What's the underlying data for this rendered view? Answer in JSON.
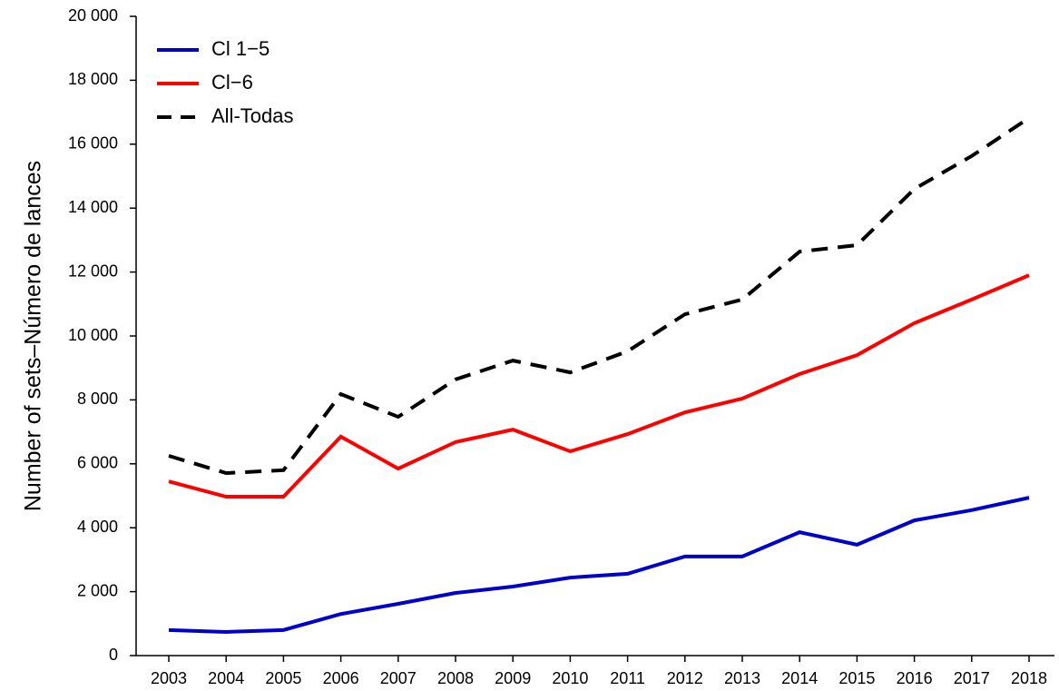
{
  "chart_data": {
    "type": "line",
    "y_label": "Number of sets–Número de lances",
    "categories": [
      "2003",
      "2004",
      "2005",
      "2006",
      "2007",
      "2008",
      "2009",
      "2010",
      "2011",
      "2012",
      "2013",
      "2014",
      "2015",
      "2016",
      "2017",
      "2018"
    ],
    "series": [
      {
        "name": "Cl 1−5",
        "color": "#0000cc",
        "linestyle": "solid",
        "values": [
          800,
          740,
          800,
          1300,
          1620,
          1960,
          2160,
          2440,
          2560,
          3100,
          3100,
          3860,
          3470,
          4230,
          4550,
          4940
        ]
      },
      {
        "name": "Cl−6",
        "color": "#ff0000",
        "linestyle": "solid",
        "values": [
          5450,
          4970,
          4970,
          6850,
          5850,
          6680,
          7070,
          6390,
          6930,
          7610,
          8040,
          8810,
          9400,
          10400,
          11140,
          11900
        ]
      },
      {
        "name": "All-Todas",
        "color": "#000000",
        "linestyle": "dashed",
        "values": [
          6250,
          5710,
          5800,
          8180,
          7470,
          8640,
          9230,
          8860,
          9520,
          10680,
          11140,
          12640,
          12840,
          14600,
          15630,
          16820
        ]
      }
    ],
    "ylim": [
      0,
      20000
    ],
    "yticks": [
      0,
      {
        "value": 2000,
        "label": "2 000"
      },
      {
        "value": 4000,
        "label": "4 000"
      },
      {
        "value": 6000,
        "label": "6 000"
      },
      {
        "value": 8000,
        "label": "8 000"
      },
      {
        "value": 10000,
        "label": "10 000"
      },
      {
        "value": 12000,
        "label": "12 000"
      },
      {
        "value": 14000,
        "label": "14 000"
      },
      {
        "value": 16000,
        "label": "16 000"
      },
      {
        "value": 18000,
        "label": "18 000"
      },
      {
        "value": 20000,
        "label": "20 000"
      }
    ],
    "legend": "top-left",
    "grid": false
  }
}
